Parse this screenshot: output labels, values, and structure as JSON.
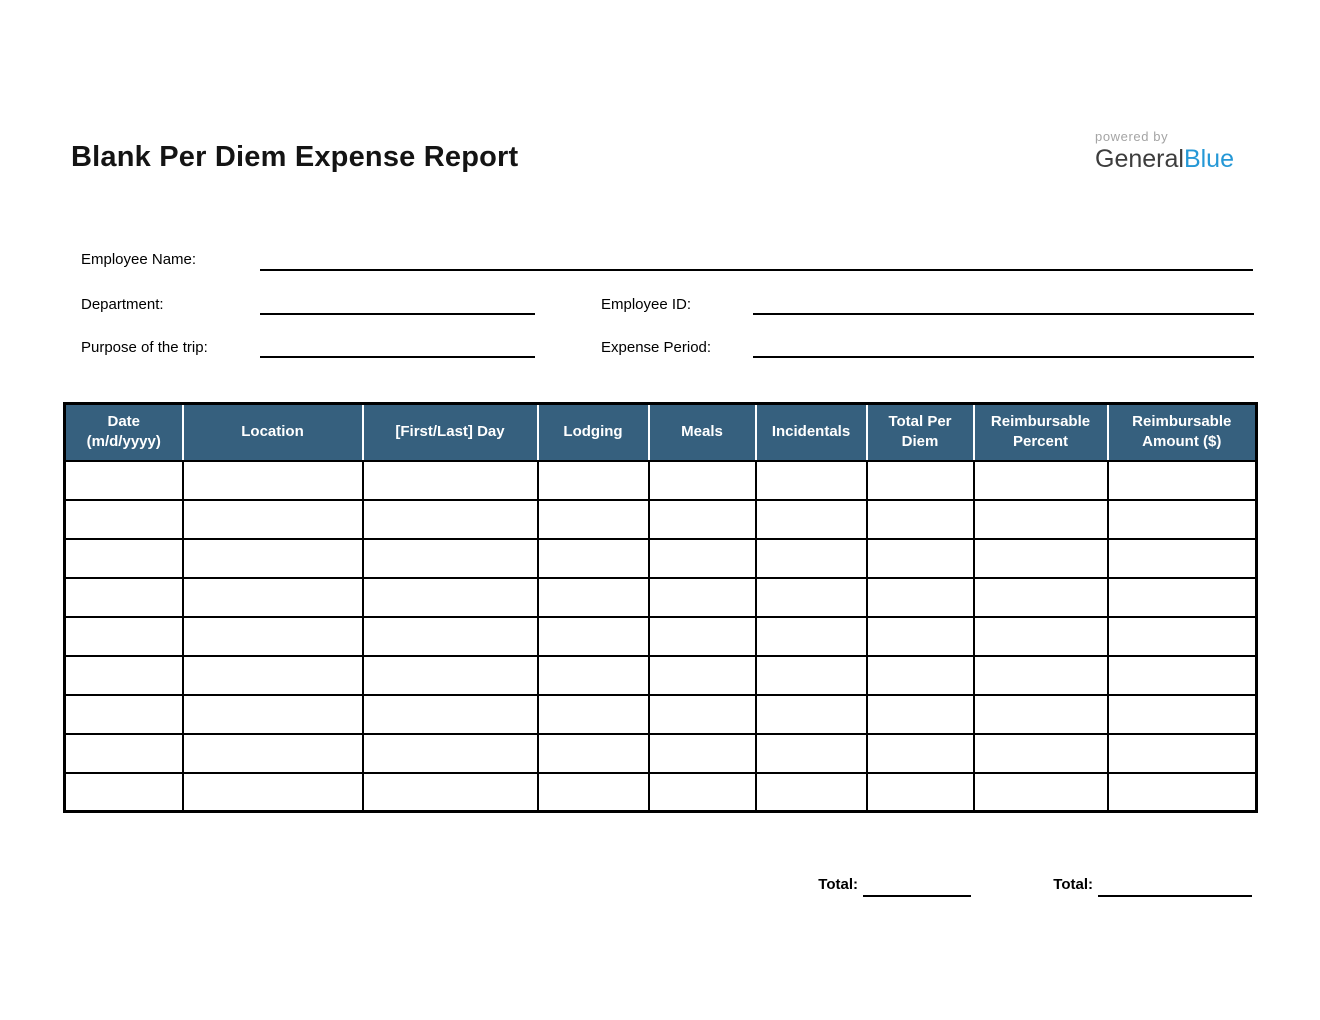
{
  "document": {
    "title": "Blank Per Diem Expense Report"
  },
  "branding": {
    "powered_by": "powered by",
    "brand_name_primary": "General",
    "brand_name_accent": "Blue",
    "accent_color": "#2598d6",
    "primary_color": "#3d3d3d"
  },
  "form": {
    "fields": [
      {
        "id": "employee_name",
        "label": "Employee Name:",
        "value": ""
      },
      {
        "id": "department",
        "label": "Department:",
        "value": ""
      },
      {
        "id": "employee_id",
        "label": "Employee ID:",
        "value": ""
      },
      {
        "id": "purpose",
        "label": "Purpose of the trip:",
        "value": ""
      },
      {
        "id": "expense_period",
        "label": "Expense Period:",
        "value": ""
      }
    ]
  },
  "table": {
    "header_bg": "#36607e",
    "header_text_color": "#ffffff",
    "columns": [
      {
        "label": "Date (m/d/yyyy)"
      },
      {
        "label": "Location"
      },
      {
        "label": "[First/Last] Day"
      },
      {
        "label": "Lodging"
      },
      {
        "label": "Meals"
      },
      {
        "label": "Incidentals"
      },
      {
        "label": "Total Per Diem"
      },
      {
        "label": "Reimbursable Percent"
      },
      {
        "label": "Reimbursable Amount ($)"
      }
    ],
    "rows": [
      [
        "",
        "",
        "",
        "",
        "",
        "",
        "",
        "",
        ""
      ],
      [
        "",
        "",
        "",
        "",
        "",
        "",
        "",
        "",
        ""
      ],
      [
        "",
        "",
        "",
        "",
        "",
        "",
        "",
        "",
        ""
      ],
      [
        "",
        "",
        "",
        "",
        "",
        "",
        "",
        "",
        ""
      ],
      [
        "",
        "",
        "",
        "",
        "",
        "",
        "",
        "",
        ""
      ],
      [
        "",
        "",
        "",
        "",
        "",
        "",
        "",
        "",
        ""
      ],
      [
        "",
        "",
        "",
        "",
        "",
        "",
        "",
        "",
        ""
      ],
      [
        "",
        "",
        "",
        "",
        "",
        "",
        "",
        "",
        ""
      ],
      [
        "",
        "",
        "",
        "",
        "",
        "",
        "",
        "",
        ""
      ]
    ]
  },
  "totals": {
    "per_diem": {
      "label": "Total:",
      "value": ""
    },
    "reimbursable": {
      "label": "Total:",
      "value": ""
    }
  }
}
